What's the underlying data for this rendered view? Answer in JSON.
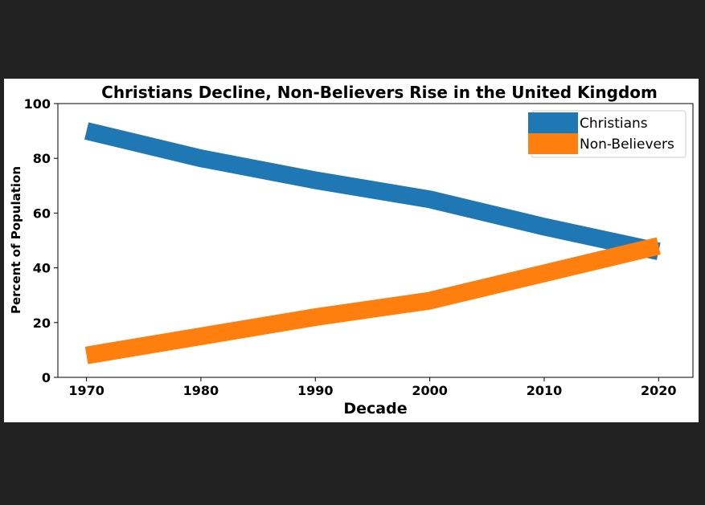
{
  "chart_data": {
    "type": "line",
    "title": "Christians Decline, Non-Believers Rise in the United Kingdom",
    "xlabel": "Decade",
    "ylabel": "Percent of Population",
    "x": [
      1970,
      1980,
      1990,
      2000,
      2010,
      2020
    ],
    "xticks": [
      1970,
      1980,
      1990,
      2000,
      2010,
      2020
    ],
    "xlim": [
      1967.5,
      2023
    ],
    "yticks": [
      0,
      20,
      40,
      60,
      80,
      100
    ],
    "ylim": [
      0,
      100
    ],
    "grid": false,
    "legend_position": "top-right",
    "series": [
      {
        "name": "Christians",
        "color": "#1f77b4",
        "values": [
          90,
          80,
          72,
          65,
          55,
          46
        ]
      },
      {
        "name": "Non-Believers",
        "color": "#ff7f0e",
        "values": [
          8,
          15,
          22,
          28,
          38,
          48
        ]
      }
    ]
  }
}
